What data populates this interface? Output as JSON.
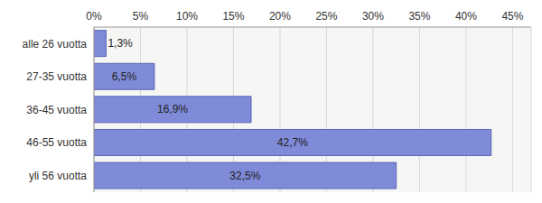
{
  "chart_data": {
    "type": "bar",
    "orientation": "horizontal",
    "categories": [
      "alle 26 vuotta",
      "27-35 vuotta",
      "36-45 vuotta",
      "46-55 vuotta",
      "yli 56 vuotta"
    ],
    "values": [
      1.3,
      6.5,
      16.9,
      42.7,
      32.5
    ],
    "value_labels": [
      "1,3%",
      "6,5%",
      "16,9%",
      "42,7%",
      "32,5%"
    ],
    "data_labels": true,
    "color": "#7f8ad8",
    "xlim": [
      0,
      47
    ],
    "xticks": [
      {
        "value": 0,
        "label": "0%"
      },
      {
        "value": 5,
        "label": "5%"
      },
      {
        "value": 10,
        "label": "10%"
      },
      {
        "value": 15,
        "label": "15%"
      },
      {
        "value": 20,
        "label": "20%"
      },
      {
        "value": 25,
        "label": "25%"
      },
      {
        "value": 30,
        "label": "30%"
      },
      {
        "value": 35,
        "label": "35%"
      },
      {
        "value": 40,
        "label": "40%"
      },
      {
        "value": 45,
        "label": "45%"
      }
    ],
    "grid": true
  }
}
